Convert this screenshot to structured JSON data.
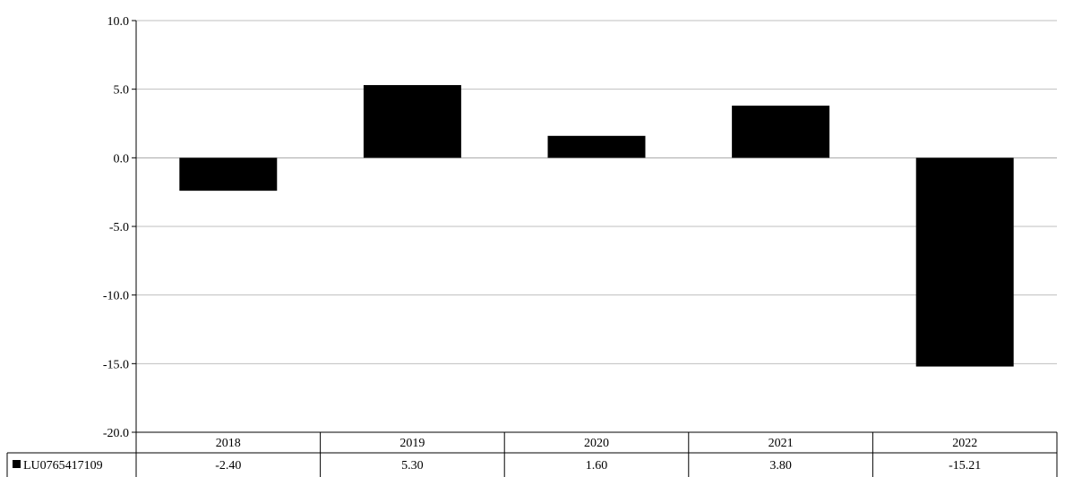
{
  "chart_data": {
    "type": "bar",
    "categories": [
      "2018",
      "2019",
      "2020",
      "2021",
      "2022"
    ],
    "series": [
      {
        "name": "LU0765417109",
        "values": [
          -2.4,
          5.3,
          1.6,
          3.8,
          -15.21
        ],
        "value_labels": [
          "-2.40",
          "5.30",
          "1.60",
          "3.80",
          "-15.21"
        ],
        "color": "#000000"
      }
    ],
    "ylim": [
      -20,
      10
    ],
    "yticks": [
      10,
      5,
      0,
      -5,
      -10,
      -15,
      -20
    ],
    "ytick_labels": [
      "10.0",
      "5.0",
      "0.0",
      "-5.0",
      "-10.0",
      "-15.0",
      "-20.0"
    ],
    "grid": true,
    "grid_color": "#bfbfbf",
    "data_table": true,
    "title": "",
    "xlabel": "",
    "ylabel": ""
  }
}
